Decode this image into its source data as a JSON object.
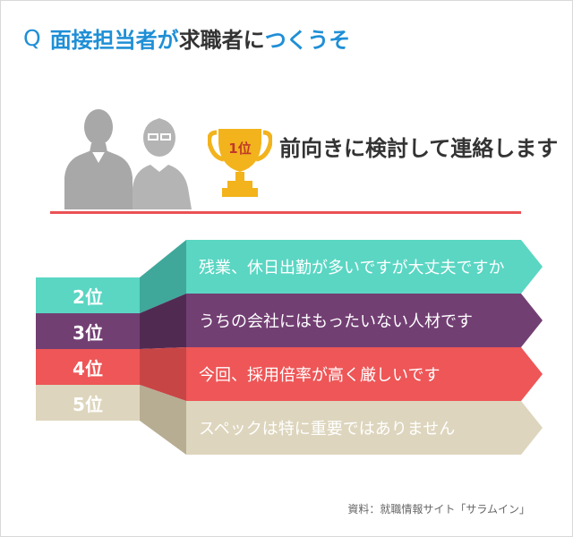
{
  "title": {
    "q_mark": "Q",
    "part1": "面接担当者が",
    "part2": "求職者に",
    "part3": "つくうそ"
  },
  "colors": {
    "blue": "#1f8fd6",
    "red_line": "#ea5154",
    "rank2": "#5ad6c3",
    "rank3": "#723f73",
    "rank4": "#ee5657",
    "rank5": "#ddd5bd"
  },
  "icons": [
    "people-silhouette-icon",
    "trophy-icon"
  ],
  "chart_data": {
    "type": "table",
    "first_place": {
      "rank": "1位",
      "text": "前向きに検討して連絡します"
    },
    "rows": [
      {
        "rank": "2位",
        "text": "残業、休日出勤が多いですが大丈夫ですか"
      },
      {
        "rank": "3位",
        "text": "うちの会社にはもったいない人材です"
      },
      {
        "rank": "4位",
        "text": "今回、採用倍率が高く厳しいです"
      },
      {
        "rank": "5位",
        "text": "スペックは特に重要ではありません"
      }
    ]
  },
  "source": "資料：就職情報サイト「サラムイン」"
}
